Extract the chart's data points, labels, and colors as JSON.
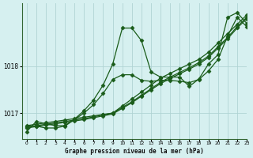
{
  "title": "Graphe pression niveau de la mer (hPa)",
  "bg_color": "#d6f0f0",
  "grid_color": "#b0d4d4",
  "line_color": "#1a5c1a",
  "xlim": [
    -0.5,
    23
  ],
  "ylim": [
    1016.45,
    1019.35
  ],
  "yticks": [
    1017,
    1018
  ],
  "xticks": [
    0,
    1,
    2,
    3,
    4,
    5,
    6,
    7,
    8,
    9,
    10,
    11,
    12,
    13,
    14,
    15,
    16,
    17,
    18,
    19,
    20,
    21,
    22,
    23
  ],
  "series": [
    [
      1016.6,
      1016.82,
      1016.77,
      1016.73,
      1016.73,
      1016.87,
      1017.05,
      1017.28,
      1017.6,
      1018.05,
      1018.82,
      1018.82,
      1018.55,
      1017.88,
      1017.77,
      1017.77,
      1017.77,
      1017.57,
      1017.73,
      1018.05,
      1018.25,
      1019.05,
      1019.15,
      1018.92
    ],
    [
      1016.72,
      1016.72,
      1016.68,
      1016.68,
      1016.72,
      1016.86,
      1017.0,
      1017.18,
      1017.42,
      1017.72,
      1017.82,
      1017.82,
      1017.7,
      1017.68,
      1017.7,
      1017.7,
      1017.68,
      1017.65,
      1017.72,
      1017.9,
      1018.15,
      1018.65,
      1019.05,
      1018.85
    ],
    [
      1016.73,
      1016.76,
      1016.79,
      1016.82,
      1016.85,
      1016.88,
      1016.91,
      1016.94,
      1016.97,
      1017.0,
      1017.15,
      1017.3,
      1017.45,
      1017.6,
      1017.75,
      1017.85,
      1017.95,
      1018.05,
      1018.15,
      1018.3,
      1018.5,
      1018.7,
      1018.9,
      1019.1
    ],
    [
      1016.7,
      1016.73,
      1016.76,
      1016.79,
      1016.82,
      1016.85,
      1016.88,
      1016.92,
      1016.96,
      1017.0,
      1017.12,
      1017.24,
      1017.38,
      1017.52,
      1017.66,
      1017.77,
      1017.87,
      1017.97,
      1018.08,
      1018.22,
      1018.42,
      1018.62,
      1018.85,
      1019.05
    ],
    [
      1016.68,
      1016.71,
      1016.74,
      1016.77,
      1016.8,
      1016.83,
      1016.86,
      1016.9,
      1016.94,
      1016.98,
      1017.1,
      1017.22,
      1017.36,
      1017.5,
      1017.63,
      1017.74,
      1017.84,
      1017.94,
      1018.05,
      1018.19,
      1018.39,
      1018.59,
      1018.82,
      1019.02
    ]
  ],
  "marker": "D",
  "markersize": 2.5,
  "linewidth": 0.9
}
